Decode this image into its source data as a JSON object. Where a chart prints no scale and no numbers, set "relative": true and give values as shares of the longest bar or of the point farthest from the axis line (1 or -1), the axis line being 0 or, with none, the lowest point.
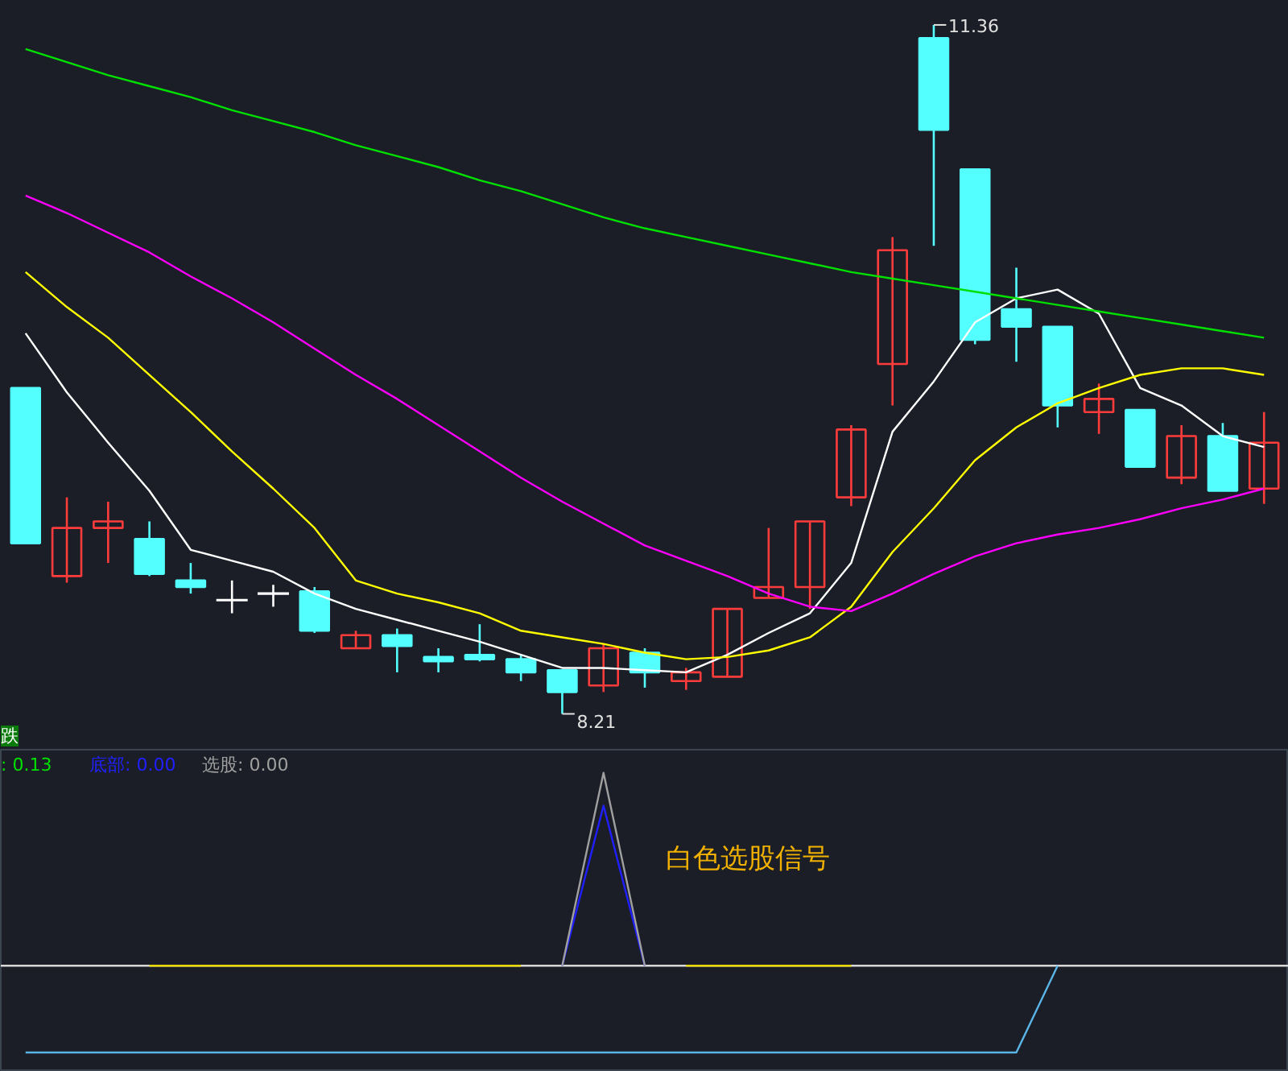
{
  "chart_data": [
    {
      "type": "candlestick",
      "categories": [
        null,
        null,
        null,
        null,
        null,
        null,
        null,
        null,
        null,
        null,
        null,
        null,
        null,
        null,
        null,
        null,
        null,
        null,
        null,
        null,
        null,
        null,
        null,
        null,
        null,
        null,
        null,
        null,
        null,
        null,
        null
      ],
      "ohlc": [
        [
          9.7,
          9.7,
          8.99,
          8.99
        ],
        [
          8.84,
          9.2,
          8.81,
          9.06
        ],
        [
          9.06,
          9.18,
          8.9,
          9.09
        ],
        [
          9.01,
          9.09,
          8.84,
          8.85
        ],
        [
          8.82,
          8.9,
          8.76,
          8.79
        ],
        [
          8.73,
          8.82,
          8.67,
          8.73
        ],
        [
          8.76,
          8.8,
          8.7,
          8.76
        ],
        [
          8.77,
          8.79,
          8.58,
          8.59
        ],
        [
          8.51,
          8.59,
          8.51,
          8.57
        ],
        [
          8.57,
          8.6,
          8.4,
          8.52
        ],
        [
          8.47,
          8.51,
          8.4,
          8.45
        ],
        [
          8.48,
          8.62,
          8.45,
          8.46
        ],
        [
          8.46,
          8.48,
          8.36,
          8.4
        ],
        [
          8.41,
          8.41,
          8.21,
          8.31
        ],
        [
          8.34,
          8.53,
          8.31,
          8.51
        ],
        [
          8.49,
          8.51,
          8.33,
          8.4
        ],
        [
          8.36,
          8.42,
          8.32,
          8.4
        ],
        [
          8.38,
          8.69,
          8.38,
          8.69
        ],
        [
          8.74,
          9.06,
          8.74,
          8.79
        ],
        [
          8.79,
          9.09,
          8.69,
          9.09
        ],
        [
          9.2,
          9.53,
          9.16,
          9.51
        ],
        [
          9.81,
          10.39,
          9.62,
          10.33
        ],
        [
          11.3,
          11.36,
          10.35,
          10.88
        ],
        [
          10.7,
          10.7,
          9.9,
          9.92
        ],
        [
          10.06,
          10.25,
          9.82,
          9.98
        ],
        [
          9.98,
          9.98,
          9.52,
          9.62
        ],
        [
          9.59,
          9.72,
          9.49,
          9.65
        ],
        [
          9.6,
          9.6,
          9.34,
          9.34
        ],
        [
          9.29,
          9.53,
          9.26,
          9.48
        ],
        [
          9.48,
          9.54,
          9.23,
          9.23
        ],
        [
          9.24,
          9.59,
          9.17,
          9.45
        ]
      ],
      "colors": [
        "#54ffff",
        "#ff3c3c",
        "#ff3c3c",
        "#54ffff",
        "#54ffff",
        "#ffffff",
        "#ffffff",
        "#54ffff",
        "#ff3c3c",
        "#54ffff",
        "#54ffff",
        "#54ffff",
        "#54ffff",
        "#54ffff",
        "#ff3c3c",
        "#54ffff",
        "#ff3c3c",
        "#ff3c3c",
        "#ff3c3c",
        "#ff3c3c",
        "#ff3c3c",
        "#ff3c3c",
        "#54ffff",
        "#54ffff",
        "#54ffff",
        "#54ffff",
        "#ff3c3c",
        "#54ffff",
        "#ff3c3c",
        "#54ffff",
        "#ff3c3c"
      ],
      "series": [
        {
          "type": "line",
          "color": "#ffffff",
          "values": [
            9.95,
            9.68,
            9.45,
            9.23,
            8.96,
            8.91,
            8.86,
            8.76,
            8.69,
            8.64,
            8.59,
            8.54,
            8.48,
            8.42,
            8.42,
            8.41,
            8.4,
            8.48,
            8.58,
            8.67,
            8.9,
            9.5,
            9.73,
            10.0,
            10.11,
            10.15,
            10.04,
            9.7,
            9.62,
            9.48,
            9.43
          ]
        },
        {
          "type": "line",
          "color": "#ffff00",
          "values": [
            10.23,
            10.07,
            9.93,
            9.76,
            9.59,
            9.41,
            9.24,
            9.06,
            8.82,
            8.76,
            8.72,
            8.67,
            8.59,
            8.56,
            8.53,
            8.49,
            8.46,
            8.47,
            8.5,
            8.56,
            8.7,
            8.95,
            9.15,
            9.37,
            9.52,
            9.63,
            9.7,
            9.76,
            9.79,
            9.79,
            9.76
          ]
        },
        {
          "type": "line",
          "color": "#ff00ff",
          "values": [
            10.58,
            10.5,
            10.41,
            10.32,
            10.21,
            10.11,
            10.0,
            9.88,
            9.76,
            9.65,
            9.53,
            9.41,
            9.29,
            9.18,
            9.08,
            8.98,
            8.91,
            8.84,
            8.76,
            8.7,
            8.68,
            8.76,
            8.85,
            8.93,
            8.99,
            9.03,
            9.06,
            9.1,
            9.15,
            9.19,
            9.24
          ]
        },
        {
          "type": "line",
          "color": "#00e000",
          "values": [
            11.25,
            11.19,
            11.13,
            11.08,
            11.03,
            10.97,
            10.92,
            10.87,
            10.81,
            10.76,
            10.71,
            10.65,
            10.6,
            10.54,
            10.48,
            10.43,
            10.39,
            10.35,
            10.31,
            10.27,
            10.23,
            10.2,
            10.17,
            10.14,
            10.11,
            10.08,
            10.05,
            10.02,
            9.99,
            9.96,
            9.93
          ]
        }
      ],
      "annotations": [
        "11.36",
        "8.21",
        "跌"
      ]
    },
    {
      "type": "line",
      "relative": true,
      "categories": [
        null,
        null,
        null,
        null,
        null,
        null,
        null,
        null,
        null,
        null,
        null,
        null,
        null,
        null,
        null,
        null,
        null,
        null,
        null,
        null,
        null,
        null,
        null,
        null,
        null,
        null,
        null,
        null,
        null,
        null,
        null
      ],
      "series": [
        {
          "color": "#5ab4e6",
          "values": [
            -0.45,
            -0.45,
            -0.45,
            -0.45,
            -0.45,
            -0.45,
            -0.45,
            -0.45,
            -0.45,
            -0.45,
            -0.45,
            -0.45,
            -0.45,
            -0.45,
            -0.45,
            -0.45,
            -0.45,
            -0.45,
            -0.45,
            -0.45,
            -0.45,
            -0.45,
            -0.45,
            -0.45,
            -0.45,
            0,
            null,
            null,
            null,
            null,
            null
          ]
        },
        {
          "color": "#e8d800",
          "values": [
            null,
            null,
            null,
            0,
            0,
            0,
            0,
            0,
            0,
            0,
            0,
            0,
            0,
            null,
            null,
            null,
            0,
            0,
            0,
            0,
            0,
            null,
            null,
            null,
            null,
            null,
            null,
            null,
            null,
            null,
            null
          ]
        },
        {
          "color": "#2020ff",
          "values": [
            null,
            null,
            null,
            null,
            null,
            null,
            null,
            null,
            null,
            null,
            null,
            null,
            null,
            0,
            0.83,
            0,
            null,
            null,
            null,
            null,
            null,
            null,
            null,
            null,
            null,
            null,
            null,
            null,
            null,
            null,
            null
          ]
        },
        {
          "color": "#a0a0a0",
          "values": [
            null,
            null,
            null,
            null,
            null,
            null,
            null,
            null,
            null,
            null,
            null,
            null,
            null,
            0,
            1,
            0,
            null,
            null,
            null,
            null,
            null,
            null,
            null,
            null,
            null,
            null,
            null,
            null,
            null,
            null,
            null
          ]
        }
      ],
      "annotations": [
        ": 0.13",
        "底部: 0.00",
        "选股: 0.00",
        "白色选股信号"
      ]
    }
  ]
}
